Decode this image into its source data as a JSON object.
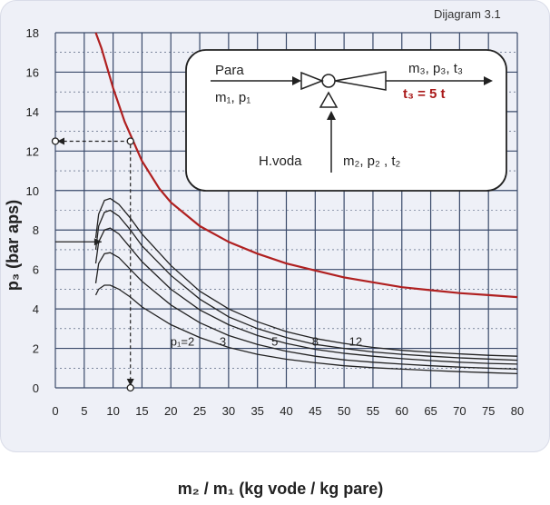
{
  "header": {
    "diagram_label": "Dijagram 3.1"
  },
  "chart_data": {
    "type": "line",
    "title": "",
    "xlabel": "m₂ / m₁  (kg vode / kg pare)",
    "ylabel": "p₃ (bar aps)",
    "xlim": [
      0,
      80
    ],
    "ylim": [
      0,
      18
    ],
    "x_ticks": [
      0,
      5,
      10,
      15,
      20,
      25,
      30,
      35,
      40,
      45,
      50,
      55,
      60,
      65,
      70,
      75,
      80
    ],
    "y_ticks": [
      0,
      2,
      4,
      6,
      8,
      10,
      12,
      14,
      16,
      18
    ],
    "grid": true,
    "colors": {
      "red": "#b02020",
      "dark": "#222222",
      "grid": "#3a4a6a"
    },
    "series": [
      {
        "name": "t3 = 5 t",
        "color": "#b02020",
        "points": [
          [
            7,
            18
          ],
          [
            8,
            17.2
          ],
          [
            10,
            15.2
          ],
          [
            12,
            13.5
          ],
          [
            15,
            11.5
          ],
          [
            18,
            10.1
          ],
          [
            20,
            9.4
          ],
          [
            25,
            8.2
          ],
          [
            30,
            7.4
          ],
          [
            35,
            6.8
          ],
          [
            40,
            6.3
          ],
          [
            45,
            5.95
          ],
          [
            50,
            5.6
          ],
          [
            55,
            5.35
          ],
          [
            60,
            5.1
          ],
          [
            65,
            4.95
          ],
          [
            70,
            4.8
          ],
          [
            75,
            4.7
          ],
          [
            80,
            4.6
          ]
        ]
      },
      {
        "name": "p1=12",
        "color": "#222222",
        "points": [
          [
            7,
            7.6
          ],
          [
            7.5,
            8.8
          ],
          [
            8.5,
            9.5
          ],
          [
            9.5,
            9.6
          ],
          [
            11,
            9.3
          ],
          [
            13,
            8.6
          ],
          [
            15,
            7.8
          ],
          [
            20,
            6.2
          ],
          [
            25,
            4.9
          ],
          [
            30,
            4.0
          ],
          [
            35,
            3.35
          ],
          [
            40,
            2.85
          ],
          [
            45,
            2.5
          ],
          [
            50,
            2.25
          ],
          [
            55,
            2.05
          ],
          [
            60,
            1.9
          ],
          [
            65,
            1.8
          ],
          [
            70,
            1.72
          ],
          [
            75,
            1.65
          ],
          [
            80,
            1.6
          ]
        ]
      },
      {
        "name": "p1=8",
        "color": "#222222",
        "points": [
          [
            7,
            7.0
          ],
          [
            7.5,
            8.2
          ],
          [
            8.5,
            8.9
          ],
          [
            9.5,
            9.0
          ],
          [
            11,
            8.7
          ],
          [
            13,
            8.0
          ],
          [
            15,
            7.2
          ],
          [
            20,
            5.7
          ],
          [
            25,
            4.5
          ],
          [
            30,
            3.6
          ],
          [
            35,
            3.0
          ],
          [
            40,
            2.55
          ],
          [
            45,
            2.2
          ],
          [
            50,
            2.0
          ],
          [
            55,
            1.82
          ],
          [
            60,
            1.7
          ],
          [
            65,
            1.6
          ],
          [
            70,
            1.52
          ],
          [
            75,
            1.46
          ],
          [
            80,
            1.4
          ]
        ]
      },
      {
        "name": "p1=5",
        "color": "#222222",
        "points": [
          [
            7,
            6.3
          ],
          [
            7.5,
            7.4
          ],
          [
            8.5,
            8.0
          ],
          [
            9.5,
            8.1
          ],
          [
            11,
            7.8
          ],
          [
            13,
            7.1
          ],
          [
            15,
            6.4
          ],
          [
            20,
            5.0
          ],
          [
            25,
            3.95
          ],
          [
            30,
            3.2
          ],
          [
            35,
            2.65
          ],
          [
            40,
            2.25
          ],
          [
            45,
            1.95
          ],
          [
            50,
            1.75
          ],
          [
            55,
            1.6
          ],
          [
            60,
            1.48
          ],
          [
            65,
            1.38
          ],
          [
            70,
            1.3
          ],
          [
            75,
            1.24
          ],
          [
            80,
            1.2
          ]
        ]
      },
      {
        "name": "p1=3",
        "color": "#222222",
        "points": [
          [
            7,
            5.3
          ],
          [
            7.5,
            6.3
          ],
          [
            8.5,
            6.8
          ],
          [
            9.5,
            6.85
          ],
          [
            11,
            6.6
          ],
          [
            13,
            6.0
          ],
          [
            15,
            5.4
          ],
          [
            20,
            4.2
          ],
          [
            25,
            3.3
          ],
          [
            30,
            2.65
          ],
          [
            35,
            2.2
          ],
          [
            40,
            1.85
          ],
          [
            45,
            1.6
          ],
          [
            50,
            1.42
          ],
          [
            55,
            1.3
          ],
          [
            60,
            1.2
          ],
          [
            65,
            1.12
          ],
          [
            70,
            1.05
          ],
          [
            75,
            1.0
          ],
          [
            80,
            0.95
          ]
        ]
      },
      {
        "name": "p1=2",
        "color": "#222222",
        "points": [
          [
            7,
            4.7
          ],
          [
            7.5,
            5.0
          ],
          [
            8.5,
            5.2
          ],
          [
            9.5,
            5.2
          ],
          [
            11,
            5.0
          ],
          [
            13,
            4.6
          ],
          [
            15,
            4.1
          ],
          [
            20,
            3.2
          ],
          [
            25,
            2.55
          ],
          [
            30,
            2.05
          ],
          [
            35,
            1.7
          ],
          [
            40,
            1.45
          ],
          [
            45,
            1.27
          ],
          [
            50,
            1.12
          ],
          [
            55,
            1.02
          ],
          [
            60,
            0.95
          ],
          [
            65,
            0.88
          ],
          [
            70,
            0.82
          ],
          [
            75,
            0.77
          ],
          [
            80,
            0.72
          ]
        ]
      }
    ],
    "curve_labels": [
      "p₁=2",
      "3",
      "5",
      "8",
      "12"
    ],
    "example_path": {
      "p1": 8,
      "m2_m1": 13,
      "p3": 12.5,
      "p1_level": 7.4
    },
    "inset": {
      "steam_label": "Para",
      "steam_vars": "m₁, p₁",
      "outlet_vars": "m₃, p₃, t₃",
      "outlet_temp": "t₃ = 5 t",
      "water_label": "H.voda",
      "water_vars": "m₂, p₂ , t₂"
    }
  }
}
